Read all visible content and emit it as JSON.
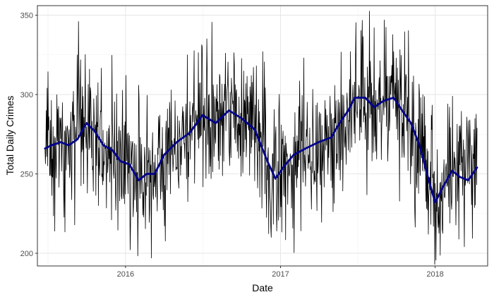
{
  "chart_data": {
    "type": "line",
    "xlabel": "Date",
    "ylabel": "Total Daily Crimes",
    "x_range": [
      "2015-06-07",
      "2018-05-05"
    ],
    "y_range": [
      192,
      356
    ],
    "x_ticks": [
      {
        "date": "2016-01-01",
        "label": "2016"
      },
      {
        "date": "2017-01-01",
        "label": "2017"
      },
      {
        "date": "2018-01-01",
        "label": "2018"
      }
    ],
    "y_ticks": [
      200,
      250,
      300,
      350
    ],
    "grid": true,
    "series": [
      {
        "kind": "daily",
        "color": "#000000",
        "start_date": "2015-06-25",
        "end_date": "2018-04-10",
        "noise_sd": 22
      },
      {
        "kind": "smoothed",
        "color": "#00008b",
        "points": [
          [
            "2015-06-25",
            266
          ],
          [
            "2015-07-10",
            268
          ],
          [
            "2015-08-01",
            270
          ],
          [
            "2015-08-20",
            268
          ],
          [
            "2015-09-10",
            272
          ],
          [
            "2015-10-01",
            282
          ],
          [
            "2015-10-20",
            277
          ],
          [
            "2015-11-10",
            268
          ],
          [
            "2015-12-01",
            265
          ],
          [
            "2015-12-20",
            258
          ],
          [
            "2016-01-10",
            256
          ],
          [
            "2016-02-01",
            246
          ],
          [
            "2016-02-20",
            250
          ],
          [
            "2016-03-10",
            250
          ],
          [
            "2016-04-01",
            262
          ],
          [
            "2016-05-01",
            270
          ],
          [
            "2016-06-01",
            276
          ],
          [
            "2016-07-01",
            287
          ],
          [
            "2016-08-01",
            282
          ],
          [
            "2016-09-01",
            290
          ],
          [
            "2016-10-01",
            285
          ],
          [
            "2016-11-01",
            278
          ],
          [
            "2016-12-01",
            258
          ],
          [
            "2016-12-20",
            247
          ],
          [
            "2017-01-10",
            255
          ],
          [
            "2017-02-01",
            262
          ],
          [
            "2017-03-01",
            266
          ],
          [
            "2017-04-01",
            270
          ],
          [
            "2017-05-01",
            273
          ],
          [
            "2017-05-20",
            282
          ],
          [
            "2017-06-10",
            290
          ],
          [
            "2017-06-25",
            298
          ],
          [
            "2017-07-20",
            298
          ],
          [
            "2017-08-10",
            292
          ],
          [
            "2017-09-01",
            296
          ],
          [
            "2017-09-25",
            298
          ],
          [
            "2017-10-15",
            290
          ],
          [
            "2017-11-05",
            282
          ],
          [
            "2017-11-25",
            268
          ],
          [
            "2017-12-15",
            248
          ],
          [
            "2018-01-01",
            232
          ],
          [
            "2018-01-20",
            242
          ],
          [
            "2018-02-10",
            252
          ],
          [
            "2018-03-01",
            248
          ],
          [
            "2018-03-20",
            246
          ],
          [
            "2018-04-10",
            254
          ]
        ]
      }
    ]
  }
}
